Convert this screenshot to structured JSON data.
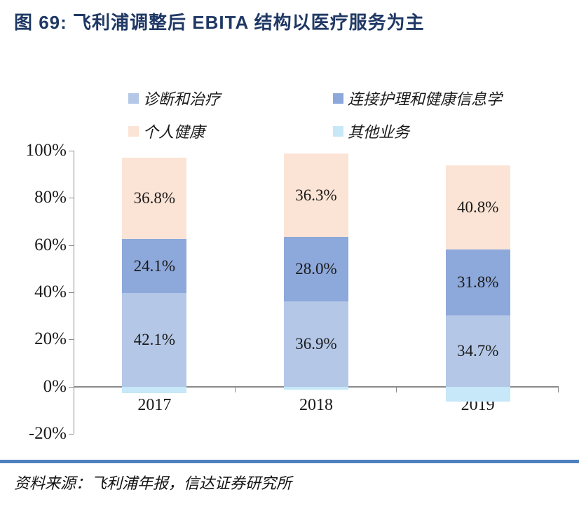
{
  "title": "图 69: 飞利浦调整后 EBITA 结构以医疗服务为主",
  "source": "资料来源：飞利浦年报，信达证券研究所",
  "colors": {
    "title": "#1F3864",
    "axis": "#8A8A8A",
    "separator": "#4E81BD",
    "label_text": "#1a1a1a"
  },
  "chart_data": {
    "type": "bar",
    "stacked": true,
    "title": "飞利浦调整后EBITA结构",
    "categories": [
      "2017",
      "2018",
      "2019"
    ],
    "series": [
      {
        "name": "诊断和治疗",
        "color": "#B4C7E7",
        "values": [
          42.1,
          36.9,
          34.7
        ],
        "data_labels": [
          "42.1%",
          "36.9%",
          "34.7%"
        ]
      },
      {
        "name": "连接护理和健康信息学",
        "color": "#8DA8DA",
        "values": [
          24.1,
          28.0,
          31.8
        ],
        "data_labels": [
          "24.1%",
          "28.0%",
          "31.8%"
        ]
      },
      {
        "name": "个人健康",
        "color": "#FBE4D5",
        "values": [
          36.8,
          36.3,
          40.8
        ],
        "data_labels": [
          "36.8%",
          "36.3%",
          "40.8%"
        ]
      },
      {
        "name": "其他业务",
        "color": "#C6E8F8",
        "values": [
          -3.0,
          -1.2,
          -7.3
        ],
        "data_labels": [
          "",
          "",
          ""
        ]
      }
    ],
    "yticks": [
      "100%",
      "80%",
      "60%",
      "40%",
      "20%",
      "0%",
      "-20%"
    ],
    "ylim": [
      -20,
      100
    ],
    "grid": false,
    "legend_position": "top"
  }
}
